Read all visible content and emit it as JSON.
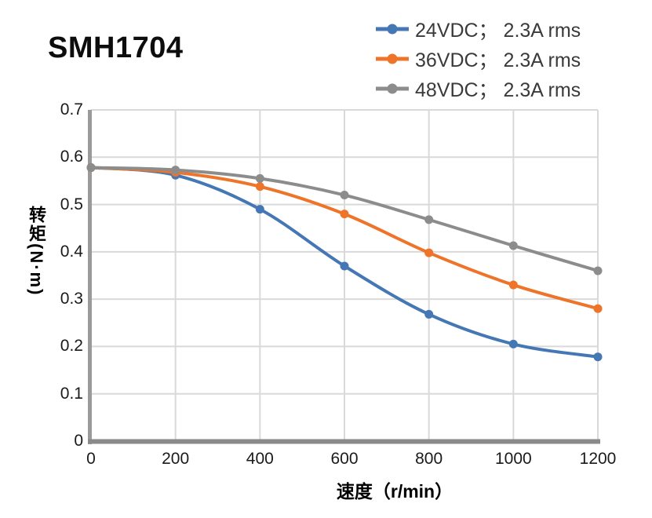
{
  "title": "SMH1704",
  "colors": {
    "grid": "#d9d9d9",
    "axis_left": "#9a9a9a",
    "axis_bottom": "#8a8a8a",
    "tick_text": "#1a1a1a",
    "legend_text": "#3a3a3a",
    "title_text": "#0d0d0d"
  },
  "chart_data": {
    "type": "line",
    "title": "SMH1704",
    "xlabel": "速度（r/min）",
    "ylabel": "转矩(N·m)",
    "x": [
      0,
      200,
      400,
      600,
      800,
      1000,
      1200
    ],
    "series": [
      {
        "name": "24VDC； 2.3A rms",
        "color": "#4677b5",
        "values": [
          0.578,
          0.562,
          0.49,
          0.37,
          0.268,
          0.205,
          0.178
        ]
      },
      {
        "name": "36VDC； 2.3A rms",
        "color": "#ed7428",
        "values": [
          0.578,
          0.568,
          0.538,
          0.48,
          0.398,
          0.33,
          0.28
        ]
      },
      {
        "name": "48VDC； 2.3A rms",
        "color": "#8c8c8c",
        "values": [
          0.578,
          0.573,
          0.555,
          0.52,
          0.468,
          0.413,
          0.36
        ]
      }
    ],
    "xlim": [
      0,
      1200
    ],
    "ylim": [
      0,
      0.7
    ],
    "xticks": [
      "0",
      "200",
      "400",
      "600",
      "800",
      "1000",
      "1200"
    ],
    "yticks": [
      "0",
      "0.1",
      "0.2",
      "0.3",
      "0.4",
      "0.5",
      "0.6",
      "0.7"
    ],
    "grid": true,
    "legend_position": "top-right",
    "line_width": 4,
    "marker": "circle",
    "marker_radius": 5.5
  }
}
